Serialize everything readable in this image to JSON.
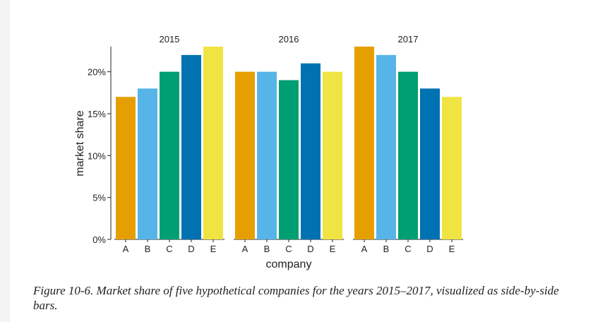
{
  "caption": "Figure 10-6. Market share of five hypothetical companies for the years 2015–2017, visualized as side-by-side bars.",
  "chart_data": {
    "type": "bar",
    "facets": [
      "2015",
      "2016",
      "2017"
    ],
    "categories": [
      "A",
      "B",
      "C",
      "D",
      "E"
    ],
    "values": [
      [
        17,
        18,
        20,
        22,
        23
      ],
      [
        20,
        20,
        19,
        21,
        20
      ],
      [
        23,
        22,
        20,
        18,
        17
      ]
    ],
    "colors": [
      "#E69F00",
      "#56B4E9",
      "#009E73",
      "#0072B2",
      "#F0E442"
    ],
    "xlabel": "company",
    "ylabel": "market share",
    "ylim": [
      0,
      23
    ],
    "yticks": [
      0,
      5,
      10,
      15,
      20
    ],
    "ytick_labels": [
      "0%",
      "5%",
      "10%",
      "15%",
      "20%"
    ],
    "grid": false,
    "legend": "none"
  }
}
